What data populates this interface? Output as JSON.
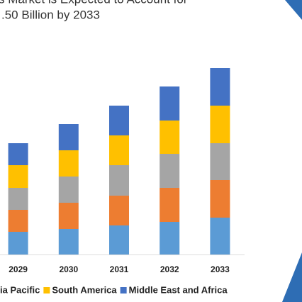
{
  "chart_data": {
    "type": "stacked_bar",
    "title_lines": [
      "s Market is Expected to Account for",
      ".50 Billion by 2033"
    ],
    "categories": [
      "2029",
      "2030",
      "2031",
      "2032",
      "2033"
    ],
    "series": [
      {
        "color": "#5b9bd5",
        "values": [
          32,
          36,
          41,
          46,
          52
        ]
      },
      {
        "color": "#ed7d31",
        "values": [
          31,
          37,
          42,
          48,
          53
        ]
      },
      {
        "name": "ia Pacific",
        "color": "#a5a5a5",
        "values": [
          31,
          37,
          43,
          48,
          52
        ]
      },
      {
        "name": "South America",
        "color": "#ffc000",
        "values": [
          32,
          37,
          42,
          47,
          53
        ]
      },
      {
        "name": "Middle East and Africa",
        "color": "#4472c4",
        "values": [
          31,
          37,
          42,
          48,
          53
        ]
      }
    ],
    "ylim": [
      0,
      300
    ]
  }
}
